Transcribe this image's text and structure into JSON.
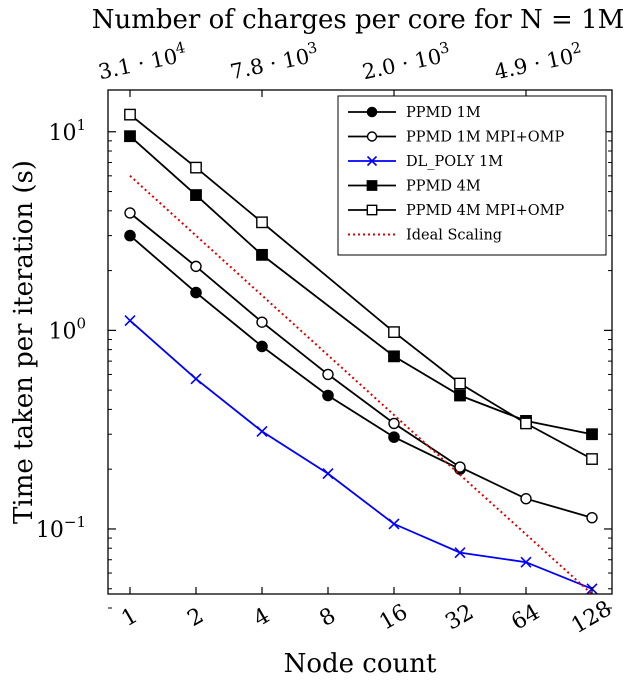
{
  "chart_data": {
    "type": "line",
    "title": "",
    "xlabel": "Node count",
    "ylabel": "Time taken per iteration (s)",
    "yscale": "log",
    "xscale": "log2",
    "ylim": [
      0.04,
      17
    ],
    "x": [
      1,
      2,
      4,
      8,
      16,
      32,
      64,
      128
    ],
    "x_tick_labels": [
      "1",
      "2",
      "4",
      "8",
      "16",
      "32",
      "64",
      "128"
    ],
    "y_tick_labels": [
      {
        "value": 0.1,
        "mantissa": "10",
        "exp": "−1"
      },
      {
        "value": 1,
        "mantissa": "10",
        "exp": "0"
      },
      {
        "value": 10,
        "mantissa": "10",
        "exp": "1"
      }
    ],
    "top_axis": {
      "label": "Number of charges per core for N = 1M",
      "ticks": [
        {
          "node": 1,
          "mantissa": "3.1 · 10",
          "exp": "4"
        },
        {
          "node": 4,
          "mantissa": "7.8 · 10",
          "exp": "3"
        },
        {
          "node": 16,
          "mantissa": "2.0 · 10",
          "exp": "3"
        },
        {
          "node": 64,
          "mantissa": "4.9 · 10",
          "exp": "2"
        }
      ]
    },
    "grid": false,
    "legend_position": "top-right",
    "series": [
      {
        "name": "PPMD 1M",
        "color": "#000000",
        "marker": "circle-filled",
        "dash": "solid",
        "values": [
          3.0,
          1.55,
          0.83,
          0.47,
          0.29,
          0.2,
          null,
          null
        ]
      },
      {
        "name": "PPMD 1M MPI+OMP",
        "color": "#000000",
        "marker": "circle-open",
        "dash": "solid",
        "values": [
          3.9,
          2.1,
          1.1,
          0.6,
          0.34,
          0.205,
          0.142,
          0.114
        ]
      },
      {
        "name": "DL_POLY 1M",
        "color": "#0000ff",
        "marker": "x",
        "dash": "solid",
        "values": [
          1.12,
          0.57,
          0.31,
          0.19,
          0.106,
          0.076,
          0.068,
          0.05
        ]
      },
      {
        "name": "PPMD 4M",
        "color": "#000000",
        "marker": "square-filled",
        "dash": "solid",
        "values": [
          9.5,
          4.8,
          2.4,
          null,
          0.74,
          0.47,
          0.35,
          0.3
        ]
      },
      {
        "name": "PPMD 4M MPI+OMP",
        "color": "#000000",
        "marker": "square-open",
        "dash": "solid",
        "values": [
          12.2,
          6.6,
          3.5,
          null,
          0.98,
          0.54,
          0.34,
          0.225
        ]
      },
      {
        "name": "Ideal Scaling",
        "color": "#dd0000",
        "marker": "none",
        "dash": "dotted",
        "values": [
          6.0,
          3.0,
          1.5,
          0.75,
          0.375,
          0.1875,
          0.094,
          0.047
        ]
      }
    ]
  }
}
